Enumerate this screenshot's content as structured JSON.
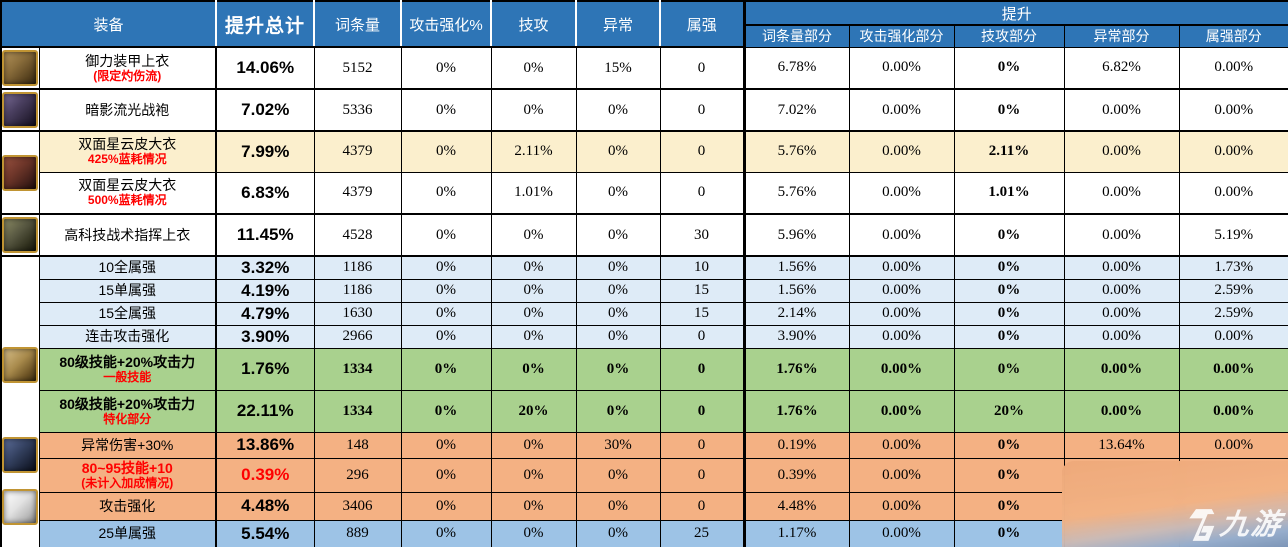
{
  "table": {
    "headers": {
      "equipment": "装备",
      "total": "提升总计",
      "cols": [
        "词条量",
        "攻击强化%",
        "技攻",
        "异常",
        "属强"
      ],
      "group": "提升",
      "subCols": [
        "词条量部分",
        "攻击强化部分",
        "技攻部分",
        "异常部分",
        "属强部分"
      ]
    },
    "rows": [
      {
        "label": "御力装甲上衣",
        "note": "(限定灼伤流)",
        "labelRed": false,
        "totalRed": false,
        "boldAll": false,
        "total": "14.06%",
        "values": [
          "5152",
          "0%",
          "0%",
          "15%",
          "0",
          "6.78%",
          "0.00%",
          "0%",
          "6.82%",
          "0.00%"
        ],
        "bg": "white"
      },
      {
        "label": "暗影流光战袍",
        "note": "",
        "labelRed": false,
        "totalRed": false,
        "boldAll": false,
        "total": "7.02%",
        "values": [
          "5336",
          "0%",
          "0%",
          "0%",
          "0",
          "7.02%",
          "0.00%",
          "0%",
          "0.00%",
          "0.00%"
        ],
        "bg": "white"
      },
      {
        "label": "双面星云皮大衣",
        "note": "425%蓝耗情况",
        "labelRed": false,
        "totalRed": false,
        "boldAll": false,
        "total": "7.99%",
        "values": [
          "4379",
          "0%",
          "2.11%",
          "0%",
          "0",
          "5.76%",
          "0.00%",
          "2.11%",
          "0.00%",
          "0.00%"
        ],
        "bg": "yellow"
      },
      {
        "label": "双面星云皮大衣",
        "note": "500%蓝耗情况",
        "labelRed": false,
        "totalRed": false,
        "boldAll": false,
        "total": "6.83%",
        "values": [
          "4379",
          "0%",
          "1.01%",
          "0%",
          "0",
          "5.76%",
          "0.00%",
          "1.01%",
          "0.00%",
          "0.00%"
        ],
        "bg": "white"
      },
      {
        "label": "高科技战术指挥上衣",
        "note": "",
        "labelRed": false,
        "totalRed": false,
        "boldAll": false,
        "total": "11.45%",
        "values": [
          "4528",
          "0%",
          "0%",
          "0%",
          "30",
          "5.96%",
          "0.00%",
          "0%",
          "0.00%",
          "5.19%"
        ],
        "bg": "white"
      },
      {
        "label": "10全属强",
        "note": "",
        "labelRed": false,
        "totalRed": false,
        "boldAll": false,
        "total": "3.32%",
        "values": [
          "1186",
          "0%",
          "0%",
          "0%",
          "10",
          "1.56%",
          "0.00%",
          "0%",
          "0.00%",
          "1.73%"
        ],
        "bg": "lightblue"
      },
      {
        "label": "15单属强",
        "note": "",
        "labelRed": false,
        "totalRed": false,
        "boldAll": false,
        "total": "4.19%",
        "values": [
          "1186",
          "0%",
          "0%",
          "0%",
          "15",
          "1.56%",
          "0.00%",
          "0%",
          "0.00%",
          "2.59%"
        ],
        "bg": "lightblue"
      },
      {
        "label": "15全属强",
        "note": "",
        "labelRed": false,
        "totalRed": false,
        "boldAll": false,
        "total": "4.79%",
        "values": [
          "1630",
          "0%",
          "0%",
          "0%",
          "15",
          "2.14%",
          "0.00%",
          "0%",
          "0.00%",
          "2.59%"
        ],
        "bg": "lightblue"
      },
      {
        "label": "连击攻击强化",
        "note": "",
        "labelRed": false,
        "totalRed": false,
        "boldAll": false,
        "total": "3.90%",
        "values": [
          "2966",
          "0%",
          "0%",
          "0%",
          "0",
          "3.90%",
          "0.00%",
          "0%",
          "0.00%",
          "0.00%"
        ],
        "bg": "lightblue"
      },
      {
        "label": "80级技能+20%攻击力",
        "note": "一般技能",
        "labelRed": false,
        "totalRed": false,
        "boldAll": true,
        "total": "1.76%",
        "values": [
          "1334",
          "0%",
          "0%",
          "0%",
          "0",
          "1.76%",
          "0.00%",
          "0%",
          "0.00%",
          "0.00%"
        ],
        "bg": "green"
      },
      {
        "label": "80级技能+20%攻击力",
        "note": "特化部分",
        "labelRed": false,
        "totalRed": false,
        "boldAll": true,
        "total": "22.11%",
        "values": [
          "1334",
          "0%",
          "20%",
          "0%",
          "0",
          "1.76%",
          "0.00%",
          "20%",
          "0.00%",
          "0.00%"
        ],
        "bg": "green"
      },
      {
        "label": "异常伤害+30%",
        "note": "",
        "labelRed": false,
        "totalRed": false,
        "boldAll": false,
        "total": "13.86%",
        "values": [
          "148",
          "0%",
          "0%",
          "30%",
          "0",
          "0.19%",
          "0.00%",
          "0%",
          "13.64%",
          "0.00%"
        ],
        "bg": "orange"
      },
      {
        "label": "80~95技能+10",
        "note": "(未计入加成情况)",
        "labelRed": true,
        "totalRed": true,
        "boldAll": false,
        "total": "0.39%",
        "values": [
          "296",
          "0%",
          "0%",
          "0%",
          "0",
          "0.39%",
          "0.00%",
          "0%",
          "",
          ""
        ],
        "bg": "orange"
      },
      {
        "label": "攻击强化",
        "note": "",
        "labelRed": false,
        "totalRed": false,
        "boldAll": false,
        "total": "4.48%",
        "values": [
          "3406",
          "0%",
          "0%",
          "0%",
          "0",
          "4.48%",
          "0.00%",
          "0%",
          "",
          ""
        ],
        "bg": "orange"
      },
      {
        "label": "25单属强",
        "note": "",
        "labelRed": false,
        "totalRed": false,
        "boldAll": false,
        "total": "5.54%",
        "values": [
          "889",
          "0%",
          "0%",
          "0%",
          "25",
          "1.17%",
          "0.00%",
          "0%",
          "",
          ""
        ],
        "bg": "blue"
      }
    ],
    "icons": [
      "yuli-armor-top-icon",
      "shadow-flow-robe-icon",
      "nebula-leather-coat-icon",
      "hightech-tactical-top-icon",
      "gold-skill-coat-icon",
      "blue-anomaly-armor-icon",
      "white-coat-icon"
    ]
  },
  "palette": {
    "header_blue": "#2E75B6",
    "row_white": "#FFFFFF",
    "row_yellow": "#FBEFCD",
    "row_lightblue": "#DEEBF7",
    "row_green": "#A9D18E",
    "row_orange": "#F4B183",
    "row_blue": "#9DC3E6",
    "note_red": "#FF0000"
  },
  "watermark": {
    "text": "九游",
    "logo": "jiuyou-g-logo"
  }
}
